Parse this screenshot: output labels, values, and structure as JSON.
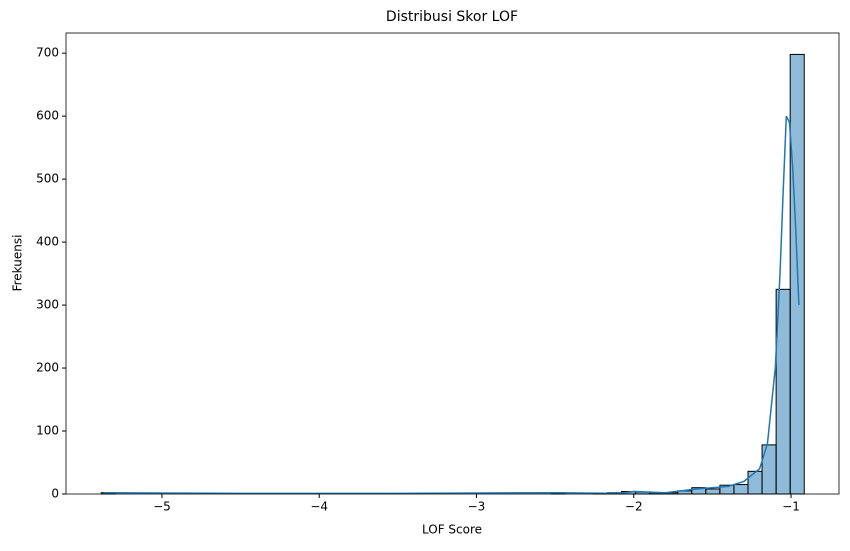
{
  "chart_data": {
    "type": "histogram",
    "title": "Distribusi Skor LOF",
    "x_label": "LOF Score",
    "y_label": "Frekuensi",
    "bins": [
      -5.386,
      -5.2966,
      -5.2072,
      -5.1178,
      -5.0284,
      -4.939,
      -4.8496,
      -4.7602,
      -4.6708,
      -4.5814,
      -4.492,
      -4.4026,
      -4.3132,
      -4.2238,
      -4.1344,
      -4.045,
      -3.9556,
      -3.8662,
      -3.7768,
      -3.6874,
      -3.598,
      -3.5086,
      -3.4192,
      -3.3298,
      -3.2404,
      -3.151,
      -3.0616,
      -2.9722,
      -2.8828,
      -2.7934,
      -2.704,
      -2.6146,
      -2.5252,
      -2.4358,
      -2.3464,
      -2.257,
      -2.1676,
      -2.0782,
      -1.9888,
      -1.8994,
      -1.81,
      -1.7206,
      -1.6312,
      -1.5418,
      -1.4524,
      -1.363,
      -1.2736,
      -1.1842,
      -1.0948,
      -1.0054,
      -0.916
    ],
    "values": [
      2,
      0,
      0,
      0,
      0,
      0,
      0,
      0,
      0,
      0,
      0,
      0,
      0,
      0,
      0,
      0,
      0,
      0,
      0,
      0,
      0,
      0,
      0,
      0,
      0,
      0,
      0,
      0,
      0,
      0,
      0,
      0,
      1,
      0,
      0,
      1,
      2,
      4,
      3,
      2,
      2,
      5,
      10,
      8,
      14,
      15,
      36,
      78,
      325,
      698
    ],
    "color": "#1f77b4",
    "kde": {
      "x": [
        -5.37,
        -4.5,
        -3.5,
        -2.5,
        -2.1,
        -2.0,
        -1.8,
        -1.6,
        -1.4,
        -1.3,
        -1.2,
        -1.15,
        -1.1,
        -1.07,
        -1.05,
        -1.03,
        -1.01,
        -0.99,
        -0.97,
        -0.95
      ],
      "values": [
        2,
        1,
        1,
        2,
        1,
        4,
        2,
        8,
        12,
        20,
        40,
        80,
        200,
        350,
        480,
        600,
        590,
        520,
        420,
        300
      ],
      "color": "#1f77b4"
    },
    "xlim": [
      -5.61,
      -0.695
    ],
    "xticks": [
      {
        "value": -5,
        "label": "−5"
      },
      {
        "value": -4,
        "label": "−4"
      },
      {
        "value": -3,
        "label": "−3"
      },
      {
        "value": -2,
        "label": "−2"
      },
      {
        "value": -1,
        "label": "−1"
      }
    ],
    "ylim": [
      0,
      732
    ],
    "yticks": [
      0,
      100,
      200,
      300,
      400,
      500,
      600,
      700
    ]
  }
}
